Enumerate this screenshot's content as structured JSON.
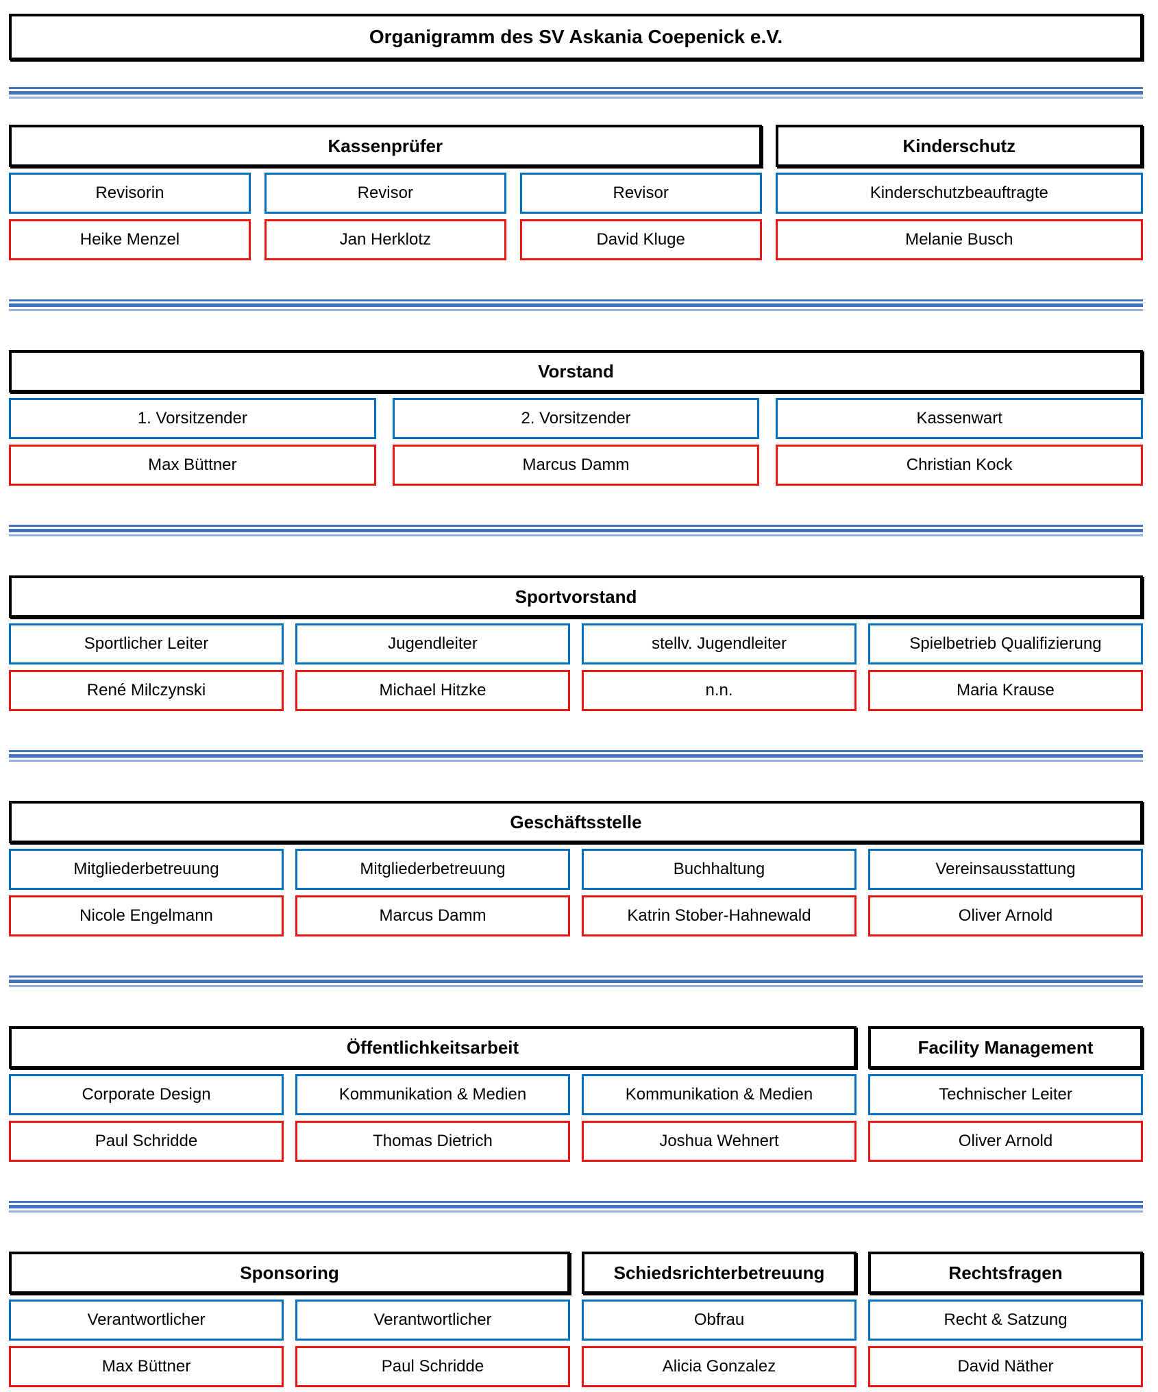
{
  "title": "Organigramm des SV Askania Coepenick e.V.",
  "colors": {
    "header_border": "#000000",
    "role_border": "#0070C0",
    "person_border": "#EE1414",
    "separator": "#4472C4",
    "separator_light": "#94B0DC"
  },
  "sections": [
    {
      "groups": [
        {
          "title": "Kassenprüfer"
        },
        {
          "title": "Kinderschutz"
        }
      ],
      "roles": [
        "Revisorin",
        "Revisor",
        "Revisor",
        "Kinderschutzbeauftragte"
      ],
      "people": [
        "Heike Menzel",
        "Jan Herklotz",
        "David Kluge",
        "Melanie Busch"
      ]
    },
    {
      "groups": [
        {
          "title": "Vorstand"
        }
      ],
      "roles": [
        "1. Vorsitzender",
        "2. Vorsitzender",
        "Kassenwart"
      ],
      "people": [
        "Max Büttner",
        "Marcus Damm",
        "Christian Kock"
      ]
    },
    {
      "groups": [
        {
          "title": "Sportvorstand"
        }
      ],
      "roles": [
        "Sportlicher Leiter",
        "Jugendleiter",
        "stellv. Jugendleiter",
        "Spielbetrieb Qualifizierung"
      ],
      "people": [
        "René Milczynski",
        "Michael Hitzke",
        "n.n.",
        "Maria Krause"
      ]
    },
    {
      "groups": [
        {
          "title": "Geschäftsstelle"
        }
      ],
      "roles": [
        "Mitgliederbetreuung",
        "Mitgliederbetreuung",
        "Buchhaltung",
        "Vereinsausstattung"
      ],
      "people": [
        "Nicole Engelmann",
        "Marcus Damm",
        "Katrin Stober-Hahnewald",
        "Oliver Arnold"
      ]
    },
    {
      "groups": [
        {
          "title": "Öffentlichkeitsarbeit"
        },
        {
          "title": "Facility Management"
        }
      ],
      "roles": [
        "Corporate Design",
        "Kommunikation & Medien",
        "Kommunikation & Medien",
        "Technischer Leiter"
      ],
      "people": [
        "Paul Schridde",
        "Thomas Dietrich",
        "Joshua Wehnert",
        "Oliver Arnold"
      ]
    },
    {
      "groups": [
        {
          "title": "Sponsoring"
        },
        {
          "title": "Schiedsrichterbetreuung"
        },
        {
          "title": "Rechtsfragen"
        }
      ],
      "roles": [
        "Verantwortlicher",
        "Verantwortlicher",
        "Obfrau",
        "Recht & Satzung"
      ],
      "people": [
        "Max Büttner",
        "Paul Schridde",
        "Alicia Gonzalez",
        "David Näther"
      ]
    }
  ]
}
